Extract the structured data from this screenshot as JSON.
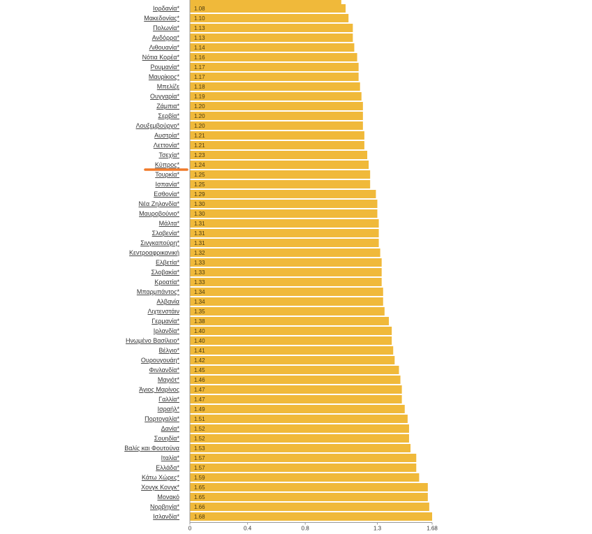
{
  "chart_data": {
    "type": "bar",
    "orientation": "horizontal",
    "bar_color": "#f0b93a",
    "highlight_color": "#f07a2a",
    "highlight_category": "Κύπρος*",
    "xlim": [
      0,
      1.68
    ],
    "x_ticks": [
      {
        "value": 0,
        "label": "0"
      },
      {
        "value": 0.4,
        "label": "0.4"
      },
      {
        "value": 0.8,
        "label": "0.8"
      },
      {
        "value": 1.3,
        "label": "1.3"
      },
      {
        "value": 1.68,
        "label": "1.68"
      }
    ],
    "categories": [
      "Ιορδανία*",
      "Μακεδονίας*",
      "Πολωνία*",
      "Ανδόρρα*",
      "Λιθουανία*",
      "Νότια Κορέα*",
      "Ρουμανία*",
      "Μαυρίκιος*",
      "Μπελίζε",
      "Ουγγαρία*",
      "Ζάμπια*",
      "Σερβία*",
      "Λουξεμβούργο*",
      "Αυστρία*",
      "Λεττονία*",
      "Τσεχία*",
      "Κύπρος*",
      "Τουρκία*",
      "Ισπανία*",
      "Εσθονία*",
      "Νέα Ζηλανδία*",
      "Μαυροβούνιο*",
      "Μάλτα*",
      "Σλοβενία*",
      "Σινγκαπούρη*",
      "Κεντροαφρικανική",
      "Ελβετία*",
      "Σλοβακία*",
      "Κροατία*",
      "Μπαρμπάντος*",
      "Αλβανία",
      "Λιχτενστάιν",
      "Γερμανία*",
      "Ιρλανδία*",
      "Ηνωμένο Βασίλειο*",
      "Βέλγιο*",
      "Ουρουγουάη*",
      "Φινλανδία*",
      "Μαγιότ*",
      "Άγιος Μαρίνος",
      "Γαλλία*",
      "Ισραήλ*",
      "Πορτογαλία*",
      "Δανία*",
      "Σουηδία*",
      "Βαλίς και Φουτούνα",
      "Ιταλία*",
      "Ελλάδα*",
      "Κάτω Χώρες*",
      "Χονγκ Κονγκ*",
      "Μονακό",
      "Νορβηγία*",
      "Ισλανδία*"
    ],
    "values": [
      1.08,
      1.1,
      1.13,
      1.13,
      1.14,
      1.16,
      1.17,
      1.17,
      1.18,
      1.19,
      1.2,
      1.2,
      1.2,
      1.21,
      1.21,
      1.23,
      1.24,
      1.25,
      1.25,
      1.29,
      1.3,
      1.3,
      1.31,
      1.31,
      1.31,
      1.32,
      1.33,
      1.33,
      1.33,
      1.34,
      1.34,
      1.35,
      1.38,
      1.4,
      1.4,
      1.41,
      1.42,
      1.45,
      1.46,
      1.47,
      1.47,
      1.49,
      1.51,
      1.52,
      1.52,
      1.53,
      1.57,
      1.57,
      1.59,
      1.65,
      1.65,
      1.66,
      1.68
    ],
    "value_labels": [
      "1.08",
      "1.10",
      "1.13",
      "1.13",
      "1.14",
      "1.16",
      "1.17",
      "1.17",
      "1.18",
      "1.19",
      "1.20",
      "1.20",
      "1.20",
      "1.21",
      "1.21",
      "1.23",
      "1.24",
      "1.25",
      "1.25",
      "1.29",
      "1.30",
      "1.30",
      "1.31",
      "1.31",
      "1.31",
      "1.32",
      "1.33",
      "1.33",
      "1.33",
      "1.34",
      "1.34",
      "1.35",
      "1.38",
      "1.40",
      "1.40",
      "1.41",
      "1.42",
      "1.45",
      "1.46",
      "1.47",
      "1.47",
      "1.49",
      "1.51",
      "1.52",
      "1.52",
      "1.53",
      "1.57",
      "1.57",
      "1.59",
      "1.65",
      "1.65",
      "1.66",
      "1.68"
    ]
  }
}
